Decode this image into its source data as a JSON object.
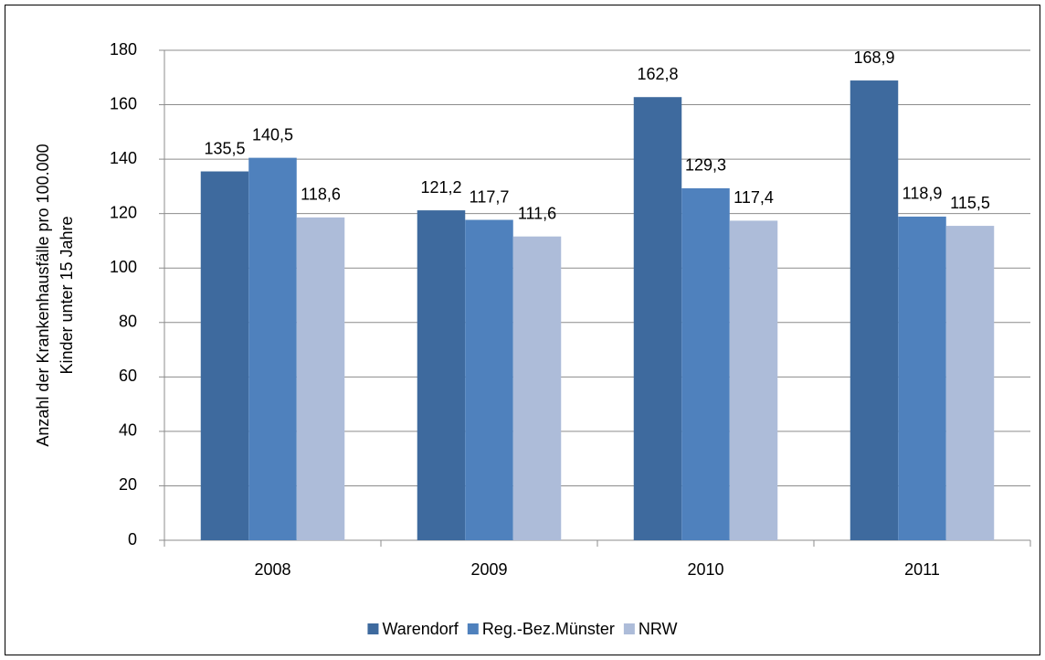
{
  "chart_data": {
    "type": "bar",
    "ylabel": [
      "Anzahl der Krankenhausfälle pro 100.000",
      "Kinder unter 15 Jahre"
    ],
    "categories": [
      "2008",
      "2009",
      "2010",
      "2011"
    ],
    "series": [
      {
        "name": "Warendorf",
        "color": "#3e6a9e",
        "values": [
          135.5,
          121.2,
          162.8,
          168.9
        ],
        "value_labels": [
          "135,5",
          "121,2",
          "162,8",
          "168,9"
        ]
      },
      {
        "name": "Reg.-Bez.Münster",
        "color": "#4f81bd",
        "values": [
          140.5,
          117.7,
          129.3,
          118.9
        ],
        "value_labels": [
          "140,5",
          "117,7",
          "129,3",
          "118,9"
        ]
      },
      {
        "name": "NRW",
        "color": "#adbcd9",
        "values": [
          118.6,
          111.6,
          117.4,
          115.5
        ],
        "value_labels": [
          "118,6",
          "111,6",
          "117,4",
          "115,5"
        ]
      }
    ],
    "ylim": [
      0,
      180
    ],
    "yticks": [
      0,
      20,
      40,
      60,
      80,
      100,
      120,
      140,
      160,
      180
    ],
    "grid": true,
    "legend": "bottom"
  }
}
